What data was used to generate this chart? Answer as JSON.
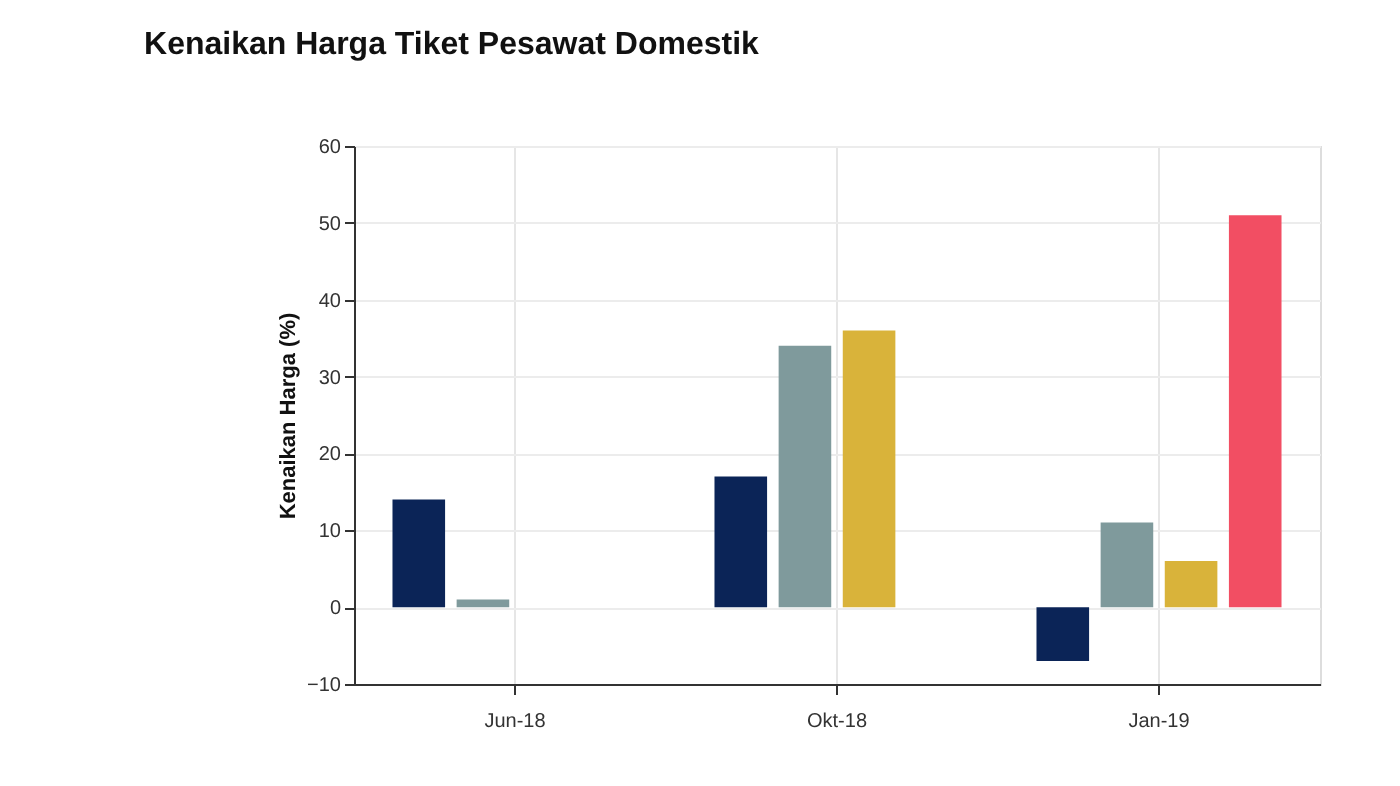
{
  "chart_data": {
    "type": "bar",
    "title": "Kenaikan Harga Tiket Pesawat Domestik",
    "ylabel": "Kenaikan Harga (%)",
    "categories": [
      "Jun-18",
      "Okt-18",
      "Jan-19"
    ],
    "series": [
      {
        "color": "#0b2457",
        "values": [
          14,
          17,
          -7
        ]
      },
      {
        "color": "#7f9a9c",
        "values": [
          1,
          34,
          11
        ]
      },
      {
        "color": "#d9b33a",
        "values": [
          null,
          36,
          6
        ]
      },
      {
        "color": "#f24e63",
        "values": [
          null,
          null,
          51
        ]
      }
    ],
    "ylim": [
      -10,
      60
    ],
    "yticks": [
      -10,
      0,
      10,
      20,
      30,
      40,
      50,
      60
    ],
    "grid": true,
    "legend": false
  }
}
